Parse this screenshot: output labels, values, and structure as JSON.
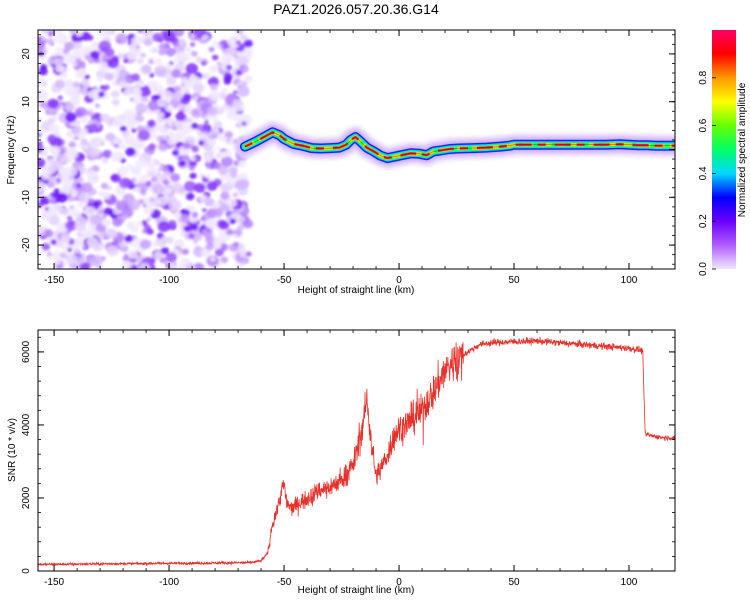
{
  "figure_title": "PAZ1.2026.057.20.36.G14",
  "chart_data": [
    {
      "type": "heatmap",
      "name": "spectrogram",
      "xlabel": "Height of straight line (km)",
      "ylabel": "Frequency (Hz)",
      "xlim": [
        -157,
        120
      ],
      "ylim": [
        -25,
        25
      ],
      "xticks": [
        -150,
        -100,
        -50,
        0,
        50,
        100
      ],
      "xtick_labels": [
        "-150",
        "-100",
        "-50",
        "0",
        "50",
        "100"
      ],
      "yticks": [
        -20,
        -10,
        0,
        10,
        20
      ],
      "ytick_labels": [
        "-20",
        "-10",
        "0",
        "10",
        "20"
      ],
      "noise_region_km": [
        -157,
        -67
      ],
      "ridge": {
        "x": [
          -67,
          -63,
          -58,
          -55,
          -52,
          -50,
          -46,
          -42,
          -38,
          -34,
          -30,
          -26,
          -23,
          -21,
          -19,
          -17,
          -14,
          -11,
          -8,
          -5,
          0,
          5,
          9,
          12,
          15,
          18,
          22,
          26,
          32,
          38,
          44,
          48,
          50,
          56,
          62,
          70,
          80,
          90,
          96,
          100,
          104,
          108,
          112,
          116,
          120
        ],
        "y": [
          0.6,
          1.5,
          2.8,
          3.6,
          3.0,
          2.2,
          1.2,
          0.8,
          0.3,
          0.2,
          0.3,
          0.4,
          1.0,
          2.0,
          2.6,
          1.8,
          0.4,
          -0.4,
          -1.3,
          -1.8,
          -1.3,
          -0.8,
          -0.9,
          -1.2,
          -0.4,
          -0.2,
          0.1,
          0.2,
          0.3,
          0.4,
          0.6,
          0.8,
          1.0,
          1.0,
          1.0,
          1.0,
          1.0,
          1.0,
          1.1,
          1.0,
          0.9,
          0.9,
          0.8,
          0.8,
          0.8
        ]
      },
      "colorbar": {
        "label": "Normalized spectral amplitude",
        "range": [
          0,
          1
        ],
        "ticks": [
          0,
          0.2,
          0.4,
          0.6,
          0.8
        ],
        "tick_labels": [
          "0.0",
          "0.2",
          "0.4",
          "0.6",
          "0.8"
        ],
        "colors": [
          "#f0e6ff",
          "#b15cff",
          "#6a00ff",
          "#0000ff",
          "#00d9ff",
          "#00ff66",
          "#66ff00",
          "#ffff00",
          "#ff9900",
          "#ff0000",
          "#ff0066"
        ]
      }
    },
    {
      "type": "line",
      "name": "snr",
      "xlabel": "Height of straight line (km)",
      "ylabel": "SNR (10 * v/v)",
      "xlim": [
        -157,
        120
      ],
      "ylim": [
        0,
        6600
      ],
      "xticks": [
        -150,
        -100,
        -50,
        0,
        50,
        100
      ],
      "xtick_labels": [
        "-150",
        "-100",
        "-50",
        "0",
        "50",
        "100"
      ],
      "yticks": [
        0,
        2000,
        4000,
        6000
      ],
      "ytick_labels": [
        "0",
        "2000",
        "4000",
        "6000"
      ],
      "series": [
        {
          "name": "SNR",
          "color": "#e8302a",
          "x": [
            -157,
            -120,
            -80,
            -65,
            -60,
            -57,
            -55,
            -53,
            -51,
            -50,
            -49,
            -47,
            -45,
            -40,
            -35,
            -30,
            -25,
            -20,
            -17,
            -15,
            -14,
            -12,
            -10,
            -8,
            -5,
            -2,
            0,
            5,
            10,
            15,
            20,
            25,
            30,
            35,
            40,
            50,
            60,
            70,
            80,
            90,
            100,
            105,
            106,
            107,
            110,
            115,
            120
          ],
          "y": [
            180,
            200,
            220,
            230,
            280,
            500,
            1300,
            1700,
            2200,
            2400,
            1900,
            1700,
            1800,
            2000,
            2200,
            2300,
            2500,
            2900,
            3600,
            4300,
            4700,
            3500,
            2600,
            2800,
            3200,
            3700,
            3900,
            4100,
            4400,
            4900,
            5500,
            5800,
            6000,
            6200,
            6250,
            6280,
            6300,
            6250,
            6200,
            6150,
            6100,
            6050,
            6000,
            3750,
            3700,
            3650,
            3650
          ]
        }
      ]
    }
  ]
}
